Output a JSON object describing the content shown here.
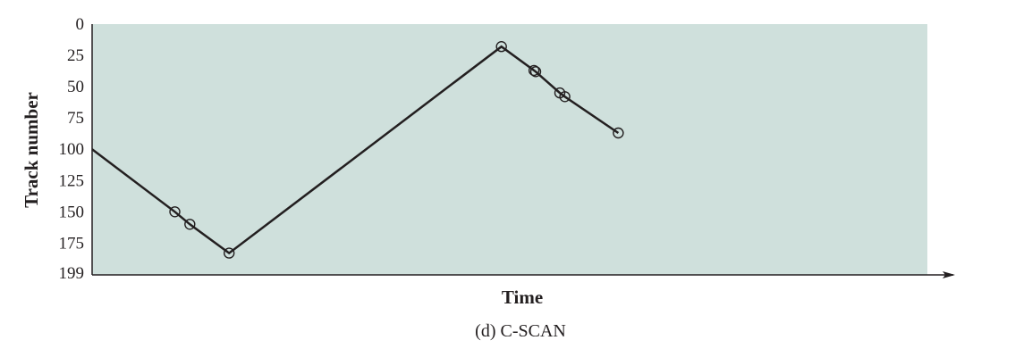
{
  "chart_data": {
    "type": "line",
    "title": "",
    "caption": "(d) C-SCAN",
    "xlabel": "Time",
    "ylabel": "Track number",
    "y_ticks": [
      "0",
      "25",
      "50",
      "75",
      "100",
      "125",
      "150",
      "175",
      "199"
    ],
    "y_tick_values": [
      0,
      25,
      50,
      75,
      100,
      125,
      150,
      175,
      199
    ],
    "ylim": [
      0,
      199
    ],
    "y_inverted": true,
    "xlim": [
      0,
      100
    ],
    "grid": false,
    "colors": {
      "plot_background": "#cfe0dc",
      "line": "#231f20",
      "axis": "#231f20"
    },
    "series": [
      {
        "x": [
          0,
          9.9,
          11.7,
          16.4,
          49.0,
          52.9,
          53.1,
          56.0,
          56.6,
          63.0
        ],
        "y": [
          100,
          150,
          160,
          183,
          18,
          37,
          38,
          55,
          58,
          87
        ]
      }
    ],
    "markers": [
      {
        "x": 9.9,
        "y": 150
      },
      {
        "x": 11.7,
        "y": 160
      },
      {
        "x": 16.4,
        "y": 183
      },
      {
        "x": 49.0,
        "y": 18
      },
      {
        "x": 52.9,
        "y": 37
      },
      {
        "x": 53.1,
        "y": 38
      },
      {
        "x": 56.0,
        "y": 55
      },
      {
        "x": 56.6,
        "y": 58
      },
      {
        "x": 63.0,
        "y": 87
      }
    ]
  }
}
